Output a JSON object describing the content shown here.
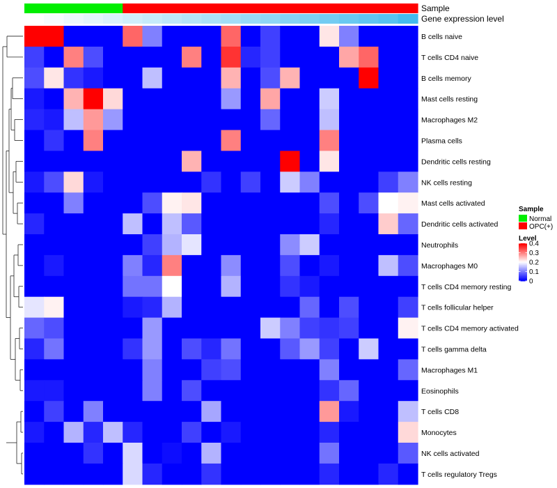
{
  "chart_data": {
    "type": "heatmap",
    "annotation_tracks": [
      {
        "label": "Sample"
      },
      {
        "label": "Gene expression level"
      }
    ],
    "sample_groups": [
      "Normal",
      "Normal",
      "Normal",
      "Normal",
      "Normal",
      "OPC(+)",
      "OPC(+)",
      "OPC(+)",
      "OPC(+)",
      "OPC(+)",
      "OPC(+)",
      "OPC(+)",
      "OPC(+)",
      "OPC(+)",
      "OPC(+)",
      "OPC(+)",
      "OPC(+)",
      "OPC(+)",
      "OPC(+)",
      "OPC(+)"
    ],
    "gene_expression_level": [
      0.0,
      0.05,
      0.1,
      0.15,
      0.2,
      0.25,
      0.3,
      0.35,
      0.4,
      0.45,
      0.5,
      0.55,
      0.6,
      0.65,
      0.7,
      0.75,
      0.8,
      0.85,
      0.9,
      1.0
    ],
    "rows": [
      "B cells naive",
      "T cells CD4 naive",
      "B cells memory",
      "Mast cells resting",
      "Macrophages M2",
      "Plasma cells",
      "Dendritic cells resting",
      "NK cells resting",
      "Mast cells activated",
      "Dendritic cells activated",
      "Neutrophils",
      "Macrophages M0",
      "T cells CD4 memory resting",
      "T cells follicular helper",
      "T cells CD4 memory activated",
      "T cells gamma delta",
      "Macrophages M1",
      "Eosinophils",
      "T cells CD8",
      "Monocytes",
      "NK cells activated",
      "T cells regulatory  Tregs"
    ],
    "values": [
      [
        0.4,
        0.4,
        0.0,
        0.0,
        0.0,
        0.32,
        0.1,
        0.0,
        0.0,
        0.0,
        0.32,
        0.0,
        0.05,
        0.0,
        0.0,
        0.22,
        0.1,
        0.0,
        0.0,
        0.0
      ],
      [
        0.05,
        0.0,
        0.3,
        0.06,
        0.0,
        0.0,
        0.0,
        0.0,
        0.3,
        0.0,
        0.36,
        0.03,
        0.05,
        0.0,
        0.0,
        0.0,
        0.27,
        0.32,
        0.0,
        0.0
      ],
      [
        0.06,
        0.22,
        0.04,
        0.02,
        0.0,
        0.0,
        0.15,
        0.0,
        0.0,
        0.0,
        0.26,
        0.0,
        0.06,
        0.26,
        0.0,
        0.0,
        0.0,
        0.4,
        0.0,
        0.0
      ],
      [
        0.02,
        0.0,
        0.26,
        0.4,
        0.23,
        0.0,
        0.0,
        0.0,
        0.0,
        0.0,
        0.12,
        0.0,
        0.27,
        0.0,
        0.0,
        0.16,
        0.0,
        0.0,
        0.0,
        0.0
      ],
      [
        0.03,
        0.02,
        0.15,
        0.28,
        0.12,
        0.0,
        0.0,
        0.0,
        0.0,
        0.0,
        0.0,
        0.0,
        0.08,
        0.0,
        0.0,
        0.15,
        0.0,
        0.0,
        0.0,
        0.0
      ],
      [
        0.0,
        0.04,
        0.0,
        0.3,
        0.0,
        0.0,
        0.0,
        0.0,
        0.0,
        0.0,
        0.3,
        0.0,
        0.0,
        0.0,
        0.0,
        0.3,
        0.0,
        0.0,
        0.0,
        0.0
      ],
      [
        0.0,
        0.0,
        0.0,
        0.0,
        0.0,
        0.0,
        0.0,
        0.0,
        0.26,
        0.0,
        0.0,
        0.0,
        0.0,
        0.4,
        0.0,
        0.22,
        0.0,
        0.0,
        0.0,
        0.0
      ],
      [
        0.02,
        0.06,
        0.23,
        0.02,
        0.0,
        0.0,
        0.0,
        0.0,
        0.0,
        0.04,
        0.0,
        0.05,
        0.0,
        0.16,
        0.1,
        0.0,
        0.0,
        0.0,
        0.05,
        0.1
      ],
      [
        0.0,
        0.0,
        0.1,
        0.0,
        0.0,
        0.0,
        0.06,
        0.21,
        0.22,
        0.0,
        0.0,
        0.0,
        0.0,
        0.0,
        0.0,
        0.06,
        0.0,
        0.06,
        0.2,
        0.21
      ],
      [
        0.03,
        0.0,
        0.0,
        0.0,
        0.0,
        0.15,
        0.0,
        0.15,
        0.07,
        0.0,
        0.0,
        0.0,
        0.0,
        0.0,
        0.0,
        0.03,
        0.0,
        0.0,
        0.24,
        0.08
      ],
      [
        0.0,
        0.0,
        0.0,
        0.0,
        0.0,
        0.0,
        0.05,
        0.14,
        0.18,
        0.0,
        0.0,
        0.0,
        0.0,
        0.11,
        0.16,
        0.0,
        0.0,
        0.0,
        0.0,
        0.0
      ],
      [
        0.0,
        0.02,
        0.0,
        0.0,
        0.0,
        0.1,
        0.03,
        0.3,
        0.0,
        0.0,
        0.11,
        0.0,
        0.0,
        0.06,
        0.0,
        0.02,
        0.0,
        0.0,
        0.15,
        0.06
      ],
      [
        0.0,
        0.0,
        0.0,
        0.0,
        0.0,
        0.09,
        0.09,
        0.2,
        0.0,
        0.0,
        0.14,
        0.0,
        0.0,
        0.04,
        0.02,
        0.0,
        0.0,
        0.0,
        0.0,
        0.0
      ],
      [
        0.18,
        0.21,
        0.0,
        0.0,
        0.0,
        0.02,
        0.03,
        0.14,
        0.0,
        0.0,
        0.0,
        0.0,
        0.0,
        0.0,
        0.08,
        0.0,
        0.06,
        0.0,
        0.0,
        0.05
      ],
      [
        0.08,
        0.06,
        0.0,
        0.0,
        0.0,
        0.0,
        0.12,
        0.0,
        0.0,
        0.0,
        0.0,
        0.0,
        0.16,
        0.1,
        0.05,
        0.04,
        0.05,
        0.0,
        0.0,
        0.21
      ],
      [
        0.03,
        0.09,
        0.0,
        0.0,
        0.0,
        0.04,
        0.12,
        0.0,
        0.06,
        0.03,
        0.09,
        0.0,
        0.0,
        0.07,
        0.12,
        0.05,
        0.0,
        0.16,
        0.0,
        0.0
      ],
      [
        0.0,
        0.0,
        0.0,
        0.0,
        0.0,
        0.0,
        0.1,
        0.0,
        0.0,
        0.05,
        0.06,
        0.0,
        0.0,
        0.0,
        0.0,
        0.1,
        0.0,
        0.0,
        0.0,
        0.08
      ],
      [
        0.02,
        0.02,
        0.0,
        0.0,
        0.0,
        0.0,
        0.1,
        0.0,
        0.06,
        0.0,
        0.0,
        0.0,
        0.0,
        0.0,
        0.0,
        0.04,
        0.08,
        0.0,
        0.0,
        0.0
      ],
      [
        0.0,
        0.05,
        0.0,
        0.1,
        0.0,
        0.0,
        0.0,
        0.0,
        0.0,
        0.13,
        0.0,
        0.0,
        0.0,
        0.0,
        0.0,
        0.28,
        0.02,
        0.0,
        0.0,
        0.15
      ],
      [
        0.02,
        0.0,
        0.14,
        0.03,
        0.15,
        0.03,
        0.0,
        0.0,
        0.05,
        0.0,
        0.02,
        0.0,
        0.0,
        0.0,
        0.0,
        0.03,
        0.0,
        0.0,
        0.0,
        0.23
      ],
      [
        0.0,
        0.0,
        0.0,
        0.04,
        0.0,
        0.17,
        0.0,
        0.01,
        0.0,
        0.14,
        0.0,
        0.0,
        0.0,
        0.0,
        0.0,
        0.09,
        0.0,
        0.0,
        0.0,
        0.07
      ],
      [
        0.0,
        0.0,
        0.0,
        0.0,
        0.0,
        0.17,
        0.03,
        0.0,
        0.0,
        0.04,
        0.0,
        0.0,
        0.0,
        0.0,
        0.0,
        0.03,
        0.0,
        0.0,
        0.03,
        0.0
      ]
    ],
    "legend": {
      "sample": {
        "title": "Sample",
        "entries": [
          {
            "label": "Normal",
            "color": "#00ee00"
          },
          {
            "label": "OPC(+)",
            "color": "#ff0000"
          }
        ]
      },
      "level": {
        "title": "Level",
        "range": [
          0,
          0.4
        ],
        "ticks": [
          0.4,
          0.3,
          0.2,
          0.1,
          0
        ],
        "tick_labels": [
          "0.4",
          "0.3",
          "0.2",
          "0.1",
          "0"
        ]
      }
    },
    "colors": {
      "low": "#0000ff",
      "mid": "#ffffff",
      "high": "#ff0000",
      "expression_low": "#ffffff",
      "expression_high": "#44bbee"
    },
    "row_dendrogram": "left",
    "legend_placement": "right"
  }
}
